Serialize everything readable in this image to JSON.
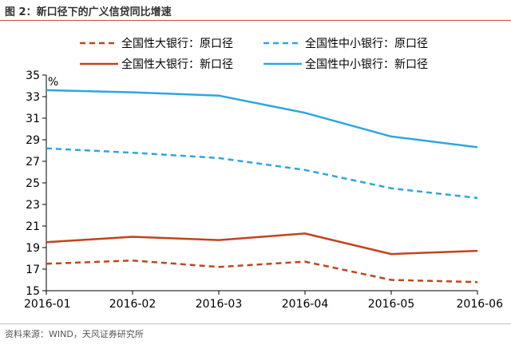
{
  "figure_title": "图 2：新口径下的广义信贷同比增速",
  "source_note": "资料来源：WIND，天风证券研究所",
  "chart_data": {
    "type": "line",
    "x": [
      "2016-01",
      "2016-02",
      "2016-03",
      "2016-04",
      "2016-05",
      "2016-06"
    ],
    "ylabel": "%",
    "ylim": [
      15,
      35
    ],
    "yticks": [
      15,
      17,
      19,
      21,
      23,
      25,
      27,
      29,
      31,
      33,
      35
    ],
    "grid": false,
    "legend_position": "top",
    "series": [
      {
        "name": "全国性大银行：原口径",
        "style": "dashed",
        "color": "#c0441f",
        "values": [
          17.5,
          17.8,
          17.2,
          17.7,
          16.0,
          15.8
        ]
      },
      {
        "name": "全国性中小银行：原口径",
        "style": "dashed",
        "color": "#2ea6df",
        "values": [
          28.2,
          27.8,
          27.3,
          26.2,
          24.5,
          23.6
        ]
      },
      {
        "name": "全国性大银行：新口径",
        "style": "solid",
        "color": "#c0441f",
        "values": [
          19.5,
          20.0,
          19.7,
          20.3,
          18.4,
          18.7
        ]
      },
      {
        "name": "全国性中小银行：新口径",
        "style": "solid",
        "color": "#2ea6df",
        "values": [
          33.6,
          33.4,
          33.1,
          31.5,
          29.3,
          28.3
        ]
      }
    ]
  }
}
